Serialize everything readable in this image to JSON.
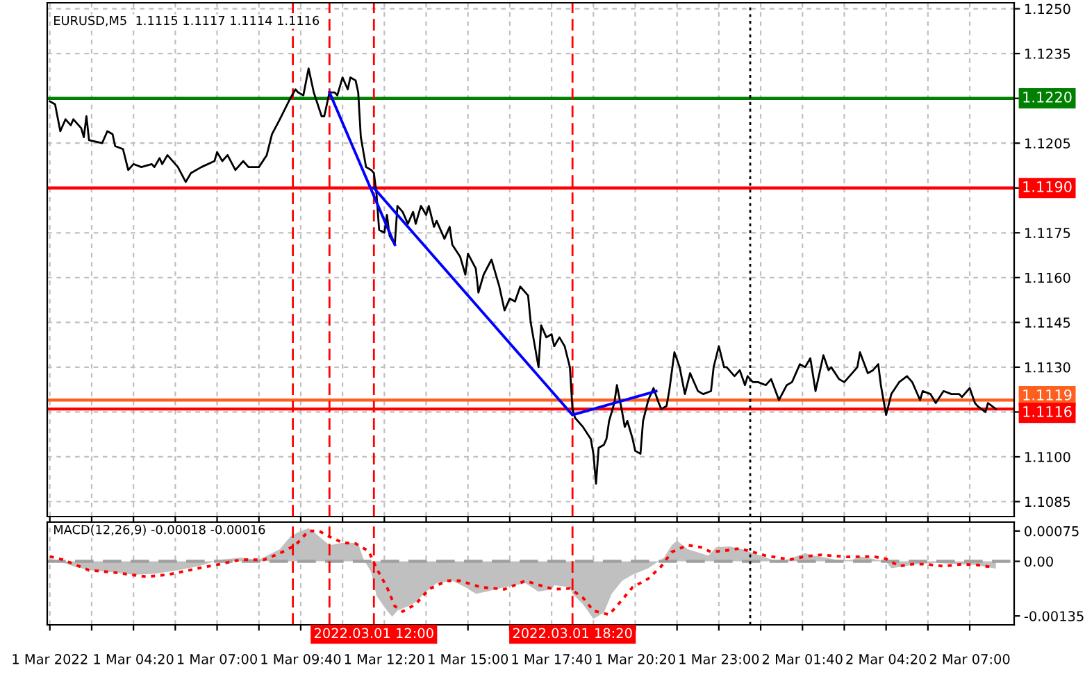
{
  "chart_data": [
    {
      "type": "line",
      "title": "EURUSD,M5  1.1115 1.1117 1.1114 1.1116",
      "series": [
        {
          "color": "#000000",
          "x": [
            "2022-03-01T01:40",
            "2022-03-01T01:50",
            "2022-03-01T02:00",
            "2022-03-01T02:10",
            "2022-03-01T02:20",
            "2022-03-01T02:25",
            "2022-03-01T02:40",
            "2022-03-01T02:45",
            "2022-03-01T02:50",
            "2022-03-01T02:55",
            "2022-03-01T03:20",
            "2022-03-01T03:30",
            "2022-03-01T03:40",
            "2022-03-01T03:45",
            "2022-03-01T04:00",
            "2022-03-01T04:10",
            "2022-03-01T04:20",
            "2022-03-01T04:35",
            "2022-03-01T04:55",
            "2022-03-01T05:00",
            "2022-03-01T05:10",
            "2022-03-01T05:15",
            "2022-03-01T05:25",
            "2022-03-01T05:45",
            "2022-03-01T06:00",
            "2022-03-01T06:10",
            "2022-03-01T06:30",
            "2022-03-01T06:55",
            "2022-03-01T07:00",
            "2022-03-01T07:10",
            "2022-03-01T07:20",
            "2022-03-01T07:35",
            "2022-03-01T07:50",
            "2022-03-01T08:00",
            "2022-03-01T08:20",
            "2022-03-01T08:35",
            "2022-03-01T08:45",
            "2022-03-01T09:00",
            "2022-03-01T09:20",
            "2022-03-01T09:30",
            "2022-03-01T09:35",
            "2022-03-01T09:45",
            "2022-03-01T09:55",
            "2022-03-01T10:05",
            "2022-03-01T10:20",
            "2022-03-01T10:25",
            "2022-03-01T10:35",
            "2022-03-01T10:45",
            "2022-03-01T10:50",
            "2022-03-01T11:00",
            "2022-03-01T11:10",
            "2022-03-01T11:15",
            "2022-03-01T11:25",
            "2022-03-01T11:30",
            "2022-03-01T11:35",
            "2022-03-01T11:45",
            "2022-03-01T11:55",
            "2022-03-01T12:00",
            "2022-03-01T12:05",
            "2022-03-01T12:10",
            "2022-03-01T12:20",
            "2022-03-01T12:25",
            "2022-03-01T12:30",
            "2022-03-01T12:40",
            "2022-03-01T12:45",
            "2022-03-01T12:55",
            "2022-03-01T13:05",
            "2022-03-01T13:15",
            "2022-03-01T13:20",
            "2022-03-01T13:30",
            "2022-03-01T13:40",
            "2022-03-01T13:45",
            "2022-03-01T13:55",
            "2022-03-01T14:00",
            "2022-03-01T14:15",
            "2022-03-01T14:25",
            "2022-03-01T14:30",
            "2022-03-01T14:45",
            "2022-03-01T14:55",
            "2022-03-01T15:00",
            "2022-03-01T15:15",
            "2022-03-01T15:20",
            "2022-03-01T15:30",
            "2022-03-01T15:45",
            "2022-03-01T16:00",
            "2022-03-01T16:10",
            "2022-03-01T16:20",
            "2022-03-01T16:30",
            "2022-03-01T16:40",
            "2022-03-01T16:55",
            "2022-03-01T17:00",
            "2022-03-01T17:15",
            "2022-03-01T17:20",
            "2022-03-01T17:30",
            "2022-03-01T17:40",
            "2022-03-01T17:45",
            "2022-03-01T17:55",
            "2022-03-01T18:05",
            "2022-03-01T18:15",
            "2022-03-01T18:20",
            "2022-03-01T18:25",
            "2022-03-01T18:40",
            "2022-03-01T18:55",
            "2022-03-01T19:00",
            "2022-03-01T19:05",
            "2022-03-01T19:10",
            "2022-03-01T19:20",
            "2022-03-01T19:25",
            "2022-03-01T19:30",
            "2022-03-01T19:40",
            "2022-03-01T19:45",
            "2022-03-01T19:55",
            "2022-03-01T20:00",
            "2022-03-01T20:05",
            "2022-03-01T20:15",
            "2022-03-01T20:20",
            "2022-03-01T20:30",
            "2022-03-01T20:35",
            "2022-03-01T20:45",
            "2022-03-01T20:55",
            "2022-03-01T21:05",
            "2022-03-01T21:10",
            "2022-03-01T21:20",
            "2022-03-01T21:25",
            "2022-03-01T21:35",
            "2022-03-01T21:45",
            "2022-03-01T21:55",
            "2022-03-01T22:05",
            "2022-03-01T22:20",
            "2022-03-01T22:30",
            "2022-03-01T22:45",
            "2022-03-01T22:50",
            "2022-03-01T23:00",
            "2022-03-01T23:10",
            "2022-03-01T23:15",
            "2022-03-01T23:30",
            "2022-03-01T23:40",
            "2022-03-01T23:50",
            "2022-03-01T23:55",
            "2022-03-02T00:05",
            "2022-03-02T00:15",
            "2022-03-02T00:30",
            "2022-03-02T00:40",
            "2022-03-02T00:55",
            "2022-03-02T01:10",
            "2022-03-02T01:20",
            "2022-03-02T01:35",
            "2022-03-02T01:45",
            "2022-03-02T01:55",
            "2022-03-02T02:05",
            "2022-03-02T02:20",
            "2022-03-02T02:30",
            "2022-03-02T02:35",
            "2022-03-02T02:50",
            "2022-03-02T03:00",
            "2022-03-02T03:10",
            "2022-03-02T03:25",
            "2022-03-02T03:30",
            "2022-03-02T03:45",
            "2022-03-02T03:55",
            "2022-03-02T04:05",
            "2022-03-02T04:10",
            "2022-03-02T04:20",
            "2022-03-02T04:30",
            "2022-03-02T04:45",
            "2022-03-02T05:00",
            "2022-03-02T05:10",
            "2022-03-02T05:25",
            "2022-03-02T05:30",
            "2022-03-02T05:45",
            "2022-03-02T05:55",
            "2022-03-02T06:10",
            "2022-03-02T06:25",
            "2022-03-02T06:40",
            "2022-03-02T06:45",
            "2022-03-02T07:00",
            "2022-03-02T07:10",
            "2022-03-02T07:15",
            "2022-03-02T07:30",
            "2022-03-02T07:35",
            "2022-03-02T07:50"
          ],
          "values": [
            1.1219,
            1.1218,
            1.1209,
            1.1213,
            1.1211,
            1.1213,
            1.121,
            1.1207,
            1.1214,
            1.1206,
            1.1205,
            1.1209,
            1.1208,
            1.1204,
            1.1203,
            1.1196,
            1.1198,
            1.1197,
            1.1198,
            1.1197,
            1.12,
            1.1198,
            1.1201,
            1.1197,
            1.1192,
            1.1195,
            1.1197,
            1.1199,
            1.1202,
            1.1199,
            1.1201,
            1.1196,
            1.1199,
            1.1197,
            1.1197,
            1.1201,
            1.1208,
            1.1213,
            1.122,
            1.1223,
            1.1222,
            1.1221,
            1.123,
            1.1222,
            1.1214,
            1.1214,
            1.1222,
            1.1222,
            1.1221,
            1.1227,
            1.1223,
            1.1227,
            1.1226,
            1.1222,
            1.1207,
            1.1197,
            1.1196,
            1.1195,
            1.1188,
            1.1176,
            1.1175,
            1.1181,
            1.1174,
            1.1171,
            1.1184,
            1.1182,
            1.1178,
            1.1182,
            1.1178,
            1.1184,
            1.1181,
            1.1184,
            1.1177,
            1.1179,
            1.1173,
            1.1177,
            1.1171,
            1.1167,
            1.1161,
            1.1168,
            1.1163,
            1.1155,
            1.1161,
            1.1166,
            1.1157,
            1.1149,
            1.1153,
            1.1152,
            1.1157,
            1.1154,
            1.1145,
            1.113,
            1.1144,
            1.114,
            1.1141,
            1.1137,
            1.114,
            1.1137,
            1.113,
            1.1116,
            1.1113,
            1.111,
            1.1106,
            1.1101,
            1.1091,
            1.1103,
            1.1104,
            1.1106,
            1.1112,
            1.1118,
            1.1124,
            1.1115,
            1.111,
            1.1112,
            1.1106,
            1.1102,
            1.1101,
            1.1112,
            1.1119,
            1.1123,
            1.1118,
            1.1116,
            1.1117,
            1.1122,
            1.1135,
            1.113,
            1.1121,
            1.1128,
            1.1122,
            1.1121,
            1.1122,
            1.113,
            1.1137,
            1.113,
            1.113,
            1.1127,
            1.1129,
            1.1124,
            1.1127,
            1.1125,
            1.1125,
            1.1124,
            1.1126,
            1.1119,
            1.1124,
            1.1125,
            1.1131,
            1.113,
            1.1133,
            1.1122,
            1.1134,
            1.1129,
            1.113,
            1.1126,
            1.1125,
            1.1127,
            1.113,
            1.1135,
            1.1128,
            1.1129,
            1.1131,
            1.1124,
            1.1114,
            1.1121,
            1.1125,
            1.1127,
            1.1125,
            1.1119,
            1.1122,
            1.1121,
            1.1118,
            1.1122,
            1.1121,
            1.1121,
            1.112,
            1.1123,
            1.1118,
            1.1117,
            1.1115,
            1.1118,
            1.1116
          ]
        },
        {
          "color": "#0000ff",
          "x": [
            "2022-03-01T10:35",
            "2022-03-01T12:40"
          ],
          "values": [
            1.1222,
            1.1171
          ]
        },
        {
          "color": "#0000ff",
          "x": [
            "2022-03-01T12:00",
            "2022-03-01T18:20",
            "2022-03-01T21:00"
          ],
          "values": [
            1.119,
            1.1114,
            1.1122
          ]
        }
      ],
      "xlim": [
        "2022-03-01T01:35",
        "2022-03-02T08:25"
      ],
      "ylim": [
        1.108,
        1.1252
      ],
      "xticks": [
        {
          "value": "2022-03-01T01:40",
          "label": null
        },
        {
          "value": "2022-03-01T03:00",
          "label": null
        },
        {
          "value": "2022-03-01T04:20",
          "label": null
        },
        {
          "value": "2022-03-01T05:40",
          "label": null
        },
        {
          "value": "2022-03-01T07:00",
          "label": null
        },
        {
          "value": "2022-03-01T08:20",
          "label": null
        },
        {
          "value": "2022-03-01T09:40",
          "label": null
        },
        {
          "value": "2022-03-01T11:00",
          "label": null
        },
        {
          "value": "2022-03-01T12:20",
          "label": null
        },
        {
          "value": "2022-03-01T13:40",
          "label": null
        },
        {
          "value": "2022-03-01T15:00",
          "label": null
        },
        {
          "value": "2022-03-01T16:20",
          "label": null
        },
        {
          "value": "2022-03-01T17:40",
          "label": null
        },
        {
          "value": "2022-03-01T19:00",
          "label": null
        },
        {
          "value": "2022-03-01T20:20",
          "label": null
        },
        {
          "value": "2022-03-01T21:40",
          "label": null
        },
        {
          "value": "2022-03-01T23:00",
          "label": null
        },
        {
          "value": "2022-03-02T00:20",
          "label": null
        },
        {
          "value": "2022-03-02T01:40",
          "label": null
        },
        {
          "value": "2022-03-02T03:00",
          "label": null
        },
        {
          "value": "2022-03-02T04:20",
          "label": null
        },
        {
          "value": "2022-03-02T05:40",
          "label": null
        },
        {
          "value": "2022-03-02T07:00",
          "label": null
        }
      ],
      "yticks": [
        {
          "value": 1.125,
          "label": "1.1250"
        },
        {
          "value": 1.1235,
          "label": "1.1235"
        },
        {
          "value": 1.122,
          "label": null
        },
        {
          "value": 1.1205,
          "label": "1.1205"
        },
        {
          "value": 1.119,
          "label": null
        },
        {
          "value": 1.1175,
          "label": "1.1175"
        },
        {
          "value": 1.116,
          "label": "1.1160"
        },
        {
          "value": 1.1145,
          "label": "1.1145"
        },
        {
          "value": 1.113,
          "label": "1.1130"
        },
        {
          "value": 1.1115,
          "label": null
        },
        {
          "value": 1.11,
          "label": "1.1100"
        },
        {
          "value": 1.1085,
          "label": "1.1085"
        }
      ],
      "tick_labels": "y",
      "grid": true,
      "legend": false,
      "ref_lines": [
        {
          "axis": "y",
          "value": 1.122,
          "label": "1.1220",
          "color": "#008000"
        },
        {
          "axis": "y",
          "value": 1.119,
          "label": "1.1190",
          "color": "#ff0000"
        },
        {
          "axis": "y",
          "value": 1.1119,
          "label": "1.1119",
          "color": "#ff6020"
        },
        {
          "axis": "y",
          "value": 1.1116,
          "label": "1.1116",
          "color": "#ff0000"
        },
        {
          "axis": "x",
          "value": "2022-03-01T09:25",
          "color": "#ff0000",
          "line_style": "dashed"
        },
        {
          "axis": "x",
          "value": "2022-03-01T10:35",
          "color": "#ff0000",
          "line_style": "dashed"
        },
        {
          "axis": "x",
          "value": "2022-03-01T12:00",
          "color": "#ff0000",
          "line_style": "dashed"
        },
        {
          "axis": "x",
          "value": "2022-03-01T18:20",
          "color": "#ff0000",
          "line_style": "dashed"
        },
        {
          "axis": "x",
          "value": "2022-03-02T00:00",
          "color": "#000000",
          "line_style": "dotted"
        }
      ]
    },
    {
      "type": "line",
      "title": "MACD(12,26,9) -0.00018 -0.00016",
      "series": [
        {
          "type": "area",
          "color": "#c0c0c0",
          "x": [
            "2022-03-01T01:40",
            "2022-03-01T01:50",
            "2022-03-01T02:25",
            "2022-03-01T02:55",
            "2022-03-01T03:40",
            "2022-03-01T04:20",
            "2022-03-01T05:00",
            "2022-03-01T05:45",
            "2022-03-01T06:25",
            "2022-03-01T07:05",
            "2022-03-01T07:45",
            "2022-03-01T08:20",
            "2022-03-01T08:45",
            "2022-03-01T09:00",
            "2022-03-01T09:20",
            "2022-03-01T09:35",
            "2022-03-01T09:55",
            "2022-03-01T10:10",
            "2022-03-01T10:35",
            "2022-03-01T11:00",
            "2022-03-01T11:15",
            "2022-03-01T11:30",
            "2022-03-01T11:40",
            "2022-03-01T11:55",
            "2022-03-01T12:05",
            "2022-03-01T12:25",
            "2022-03-01T12:35",
            "2022-03-01T12:45",
            "2022-03-01T13:05",
            "2022-03-01T13:20",
            "2022-03-01T13:40",
            "2022-03-01T14:00",
            "2022-03-01T14:30",
            "2022-03-01T14:55",
            "2022-03-01T15:15",
            "2022-03-01T15:35",
            "2022-03-01T16:10",
            "2022-03-01T16:50",
            "2022-03-01T17:15",
            "2022-03-01T17:40",
            "2022-03-01T17:45",
            "2022-03-01T18:15",
            "2022-03-01T18:20",
            "2022-03-01T18:40",
            "2022-03-01T19:00",
            "2022-03-01T19:20",
            "2022-03-01T19:35",
            "2022-03-01T19:55",
            "2022-03-01T20:15",
            "2022-03-01T20:45",
            "2022-03-01T21:15",
            "2022-03-01T21:30",
            "2022-03-01T21:40",
            "2022-03-01T22:00",
            "2022-03-01T22:25",
            "2022-03-01T22:40",
            "2022-03-01T22:55",
            "2022-03-01T23:20",
            "2022-03-01T23:45",
            "2022-03-02T00:05",
            "2022-03-02T00:20",
            "2022-03-02T00:45",
            "2022-03-02T00:55",
            "2022-03-02T01:10",
            "2022-03-02T01:45",
            "2022-03-02T02:00",
            "2022-03-02T02:25",
            "2022-03-02T02:50",
            "2022-03-02T03:15",
            "2022-03-02T03:30",
            "2022-03-02T03:55",
            "2022-03-02T04:20",
            "2022-03-02T04:30",
            "2022-03-02T04:55",
            "2022-03-02T05:20",
            "2022-03-02T05:55",
            "2022-03-02T06:35",
            "2022-03-02T07:10",
            "2022-03-02T07:25",
            "2022-03-02T07:50"
          ],
          "values": [
            6e-05,
            4e-05,
            -0.00012,
            -0.00022,
            -0.00027,
            -0.00033,
            -0.00031,
            -0.00022,
            -0.00012,
            4e-05,
            9e-05,
            4e-05,
            0.0002,
            0.0003,
            0.00061,
            0.00072,
            0.00082,
            0.00067,
            0.0004,
            0.00046,
            0.00046,
            0.00044,
            6e-05,
            -0.00027,
            -0.00085,
            -0.00122,
            -0.00137,
            -0.00122,
            -0.00111,
            -0.00101,
            -0.00075,
            -0.00054,
            -0.00048,
            -0.00064,
            -0.0008,
            -0.00075,
            -0.00064,
            -0.00054,
            -0.00075,
            -0.00069,
            -0.00059,
            -0.00064,
            -0.0008,
            -0.00106,
            -0.00142,
            -0.00127,
            -0.0008,
            -0.00048,
            -0.00033,
            -0.00017,
            9e-05,
            0.0004,
            0.00051,
            0.0003,
            0.0002,
            0.00014,
            0.00035,
            0.00037,
            0.0003,
            0.0002,
            0.00014,
            2e-05,
            -4e-05,
            4e-05,
            0.0002,
            0.00014,
            9e-05,
            2e-05,
            4e-05,
            0.00012,
            6e-05,
            -1e-05,
            -0.00017,
            -0.00012,
            -7e-05,
            -4e-05,
            -7e-05,
            -9e-05,
            -0.00012,
            -0.00018
          ]
        },
        {
          "type": "line",
          "color": "#ff0000",
          "line_style": "dotted",
          "x": [
            "2022-03-01T01:40",
            "2022-03-01T02:05",
            "2022-03-01T02:55",
            "2022-03-01T03:40",
            "2022-03-01T04:45",
            "2022-03-01T05:25",
            "2022-03-01T06:25",
            "2022-03-01T07:05",
            "2022-03-01T07:45",
            "2022-03-01T08:30",
            "2022-03-01T09:00",
            "2022-03-01T09:30",
            "2022-03-01T09:55",
            "2022-03-01T10:15",
            "2022-03-01T10:35",
            "2022-03-01T11:00",
            "2022-03-01T11:25",
            "2022-03-01T11:50",
            "2022-03-01T12:05",
            "2022-03-01T12:25",
            "2022-03-01T12:40",
            "2022-03-01T12:55",
            "2022-03-01T13:20",
            "2022-03-01T13:45",
            "2022-03-01T14:20",
            "2022-03-01T14:45",
            "2022-03-01T15:25",
            "2022-03-01T16:10",
            "2022-03-01T16:50",
            "2022-03-01T17:30",
            "2022-03-01T17:45",
            "2022-03-01T18:15",
            "2022-03-01T18:40",
            "2022-03-01T19:00",
            "2022-03-01T19:30",
            "2022-03-01T19:55",
            "2022-03-01T20:15",
            "2022-03-01T20:45",
            "2022-03-01T21:10",
            "2022-03-01T21:30",
            "2022-03-01T22:00",
            "2022-03-01T22:25",
            "2022-03-01T22:45",
            "2022-03-01T23:15",
            "2022-03-01T23:40",
            "2022-03-02T00:05",
            "2022-03-02T00:30",
            "2022-03-02T00:55",
            "2022-03-02T01:15",
            "2022-03-02T01:45",
            "2022-03-02T02:15",
            "2022-03-02T03:05",
            "2022-03-02T03:55",
            "2022-03-02T04:20",
            "2022-03-02T04:45",
            "2022-03-02T05:10",
            "2022-03-02T05:35",
            "2022-03-02T06:10",
            "2022-03-02T06:45",
            "2022-03-02T07:15",
            "2022-03-02T07:45"
          ],
          "values": [
            0.00012,
            4e-05,
            -0.00022,
            -0.00027,
            -0.00038,
            -0.00033,
            -0.00017,
            -7e-05,
            4e-05,
            4e-05,
            0.0002,
            0.0004,
            0.00075,
            0.00075,
            0.00061,
            0.00046,
            0.00044,
            0.00025,
            -0.00017,
            -0.00064,
            -0.00111,
            -0.00124,
            -0.00106,
            -0.00069,
            -0.00048,
            -0.00048,
            -0.00064,
            -0.00069,
            -0.00048,
            -0.00064,
            -0.00069,
            -0.00067,
            -0.0009,
            -0.00122,
            -0.00132,
            -0.00095,
            -0.00064,
            -0.00043,
            -0.00012,
            0.00023,
            0.0004,
            0.00035,
            0.00023,
            0.00027,
            0.00032,
            0.00023,
            0.00014,
            9e-05,
            4e-05,
            0.00012,
            0.00016,
            0.00011,
            0.00012,
            6e-05,
            -0.00012,
            -7e-05,
            -7e-05,
            -0.00012,
            -7e-05,
            -9e-05,
            -0.00015
          ]
        }
      ],
      "xlim": [
        "2022-03-01T01:35",
        "2022-03-02T08:25"
      ],
      "ylim": [
        -0.00157,
        0.00097
      ],
      "xticks": [
        {
          "value": "2022-03-01T01:40",
          "label": "1 Mar 2022"
        },
        {
          "value": "2022-03-01T03:00",
          "label": null
        },
        {
          "value": "2022-03-01T04:20",
          "label": "1 Mar 04:20"
        },
        {
          "value": "2022-03-01T05:40",
          "label": null
        },
        {
          "value": "2022-03-01T07:00",
          "label": "1 Mar 07:00"
        },
        {
          "value": "2022-03-01T08:20",
          "label": null
        },
        {
          "value": "2022-03-01T09:40",
          "label": "1 Mar 09:40"
        },
        {
          "value": "2022-03-01T11:00",
          "label": null
        },
        {
          "value": "2022-03-01T12:20",
          "label": "1 Mar 12:20"
        },
        {
          "value": "2022-03-01T13:40",
          "label": null
        },
        {
          "value": "2022-03-01T15:00",
          "label": "1 Mar 15:00"
        },
        {
          "value": "2022-03-01T16:20",
          "label": null
        },
        {
          "value": "2022-03-01T17:40",
          "label": "1 Mar 17:40"
        },
        {
          "value": "2022-03-01T19:00",
          "label": null
        },
        {
          "value": "2022-03-01T20:20",
          "label": "1 Mar 20:20"
        },
        {
          "value": "2022-03-01T21:40",
          "label": null
        },
        {
          "value": "2022-03-01T23:00",
          "label": "1 Mar 23:00"
        },
        {
          "value": "2022-03-02T00:20",
          "label": null
        },
        {
          "value": "2022-03-02T01:40",
          "label": "2 Mar 01:40"
        },
        {
          "value": "2022-03-02T03:00",
          "label": null
        },
        {
          "value": "2022-03-02T04:20",
          "label": "2 Mar 04:20"
        },
        {
          "value": "2022-03-02T05:40",
          "label": null
        },
        {
          "value": "2022-03-02T07:00",
          "label": "2 Mar 07:00"
        }
      ],
      "yticks": [
        {
          "value": 0.00075,
          "label": "0.00075"
        },
        {
          "value": 0,
          "label": "0.00"
        },
        {
          "value": -0.00135,
          "label": "-0.00135"
        }
      ],
      "grid": "x",
      "legend": false,
      "ref_lines": [
        {
          "axis": "y",
          "value": 0,
          "color": "#a0a0a0",
          "line_style": "dashed"
        },
        {
          "axis": "x",
          "value": "2022-03-01T09:25",
          "color": "#ff0000",
          "line_style": "dashed"
        },
        {
          "axis": "x",
          "value": "2022-03-01T10:35",
          "color": "#ff0000",
          "line_style": "dashed"
        },
        {
          "axis": "x",
          "value": "2022-03-01T12:00",
          "label": "2022.03.01 12:00",
          "color": "#ff0000",
          "line_style": "dashed"
        },
        {
          "axis": "x",
          "value": "2022-03-01T18:20",
          "label": "2022.03.01 18:20",
          "color": "#ff0000",
          "line_style": "dashed"
        },
        {
          "axis": "x",
          "value": "2022-03-02T00:00",
          "color": "#000000",
          "line_style": "dotted"
        }
      ]
    }
  ]
}
